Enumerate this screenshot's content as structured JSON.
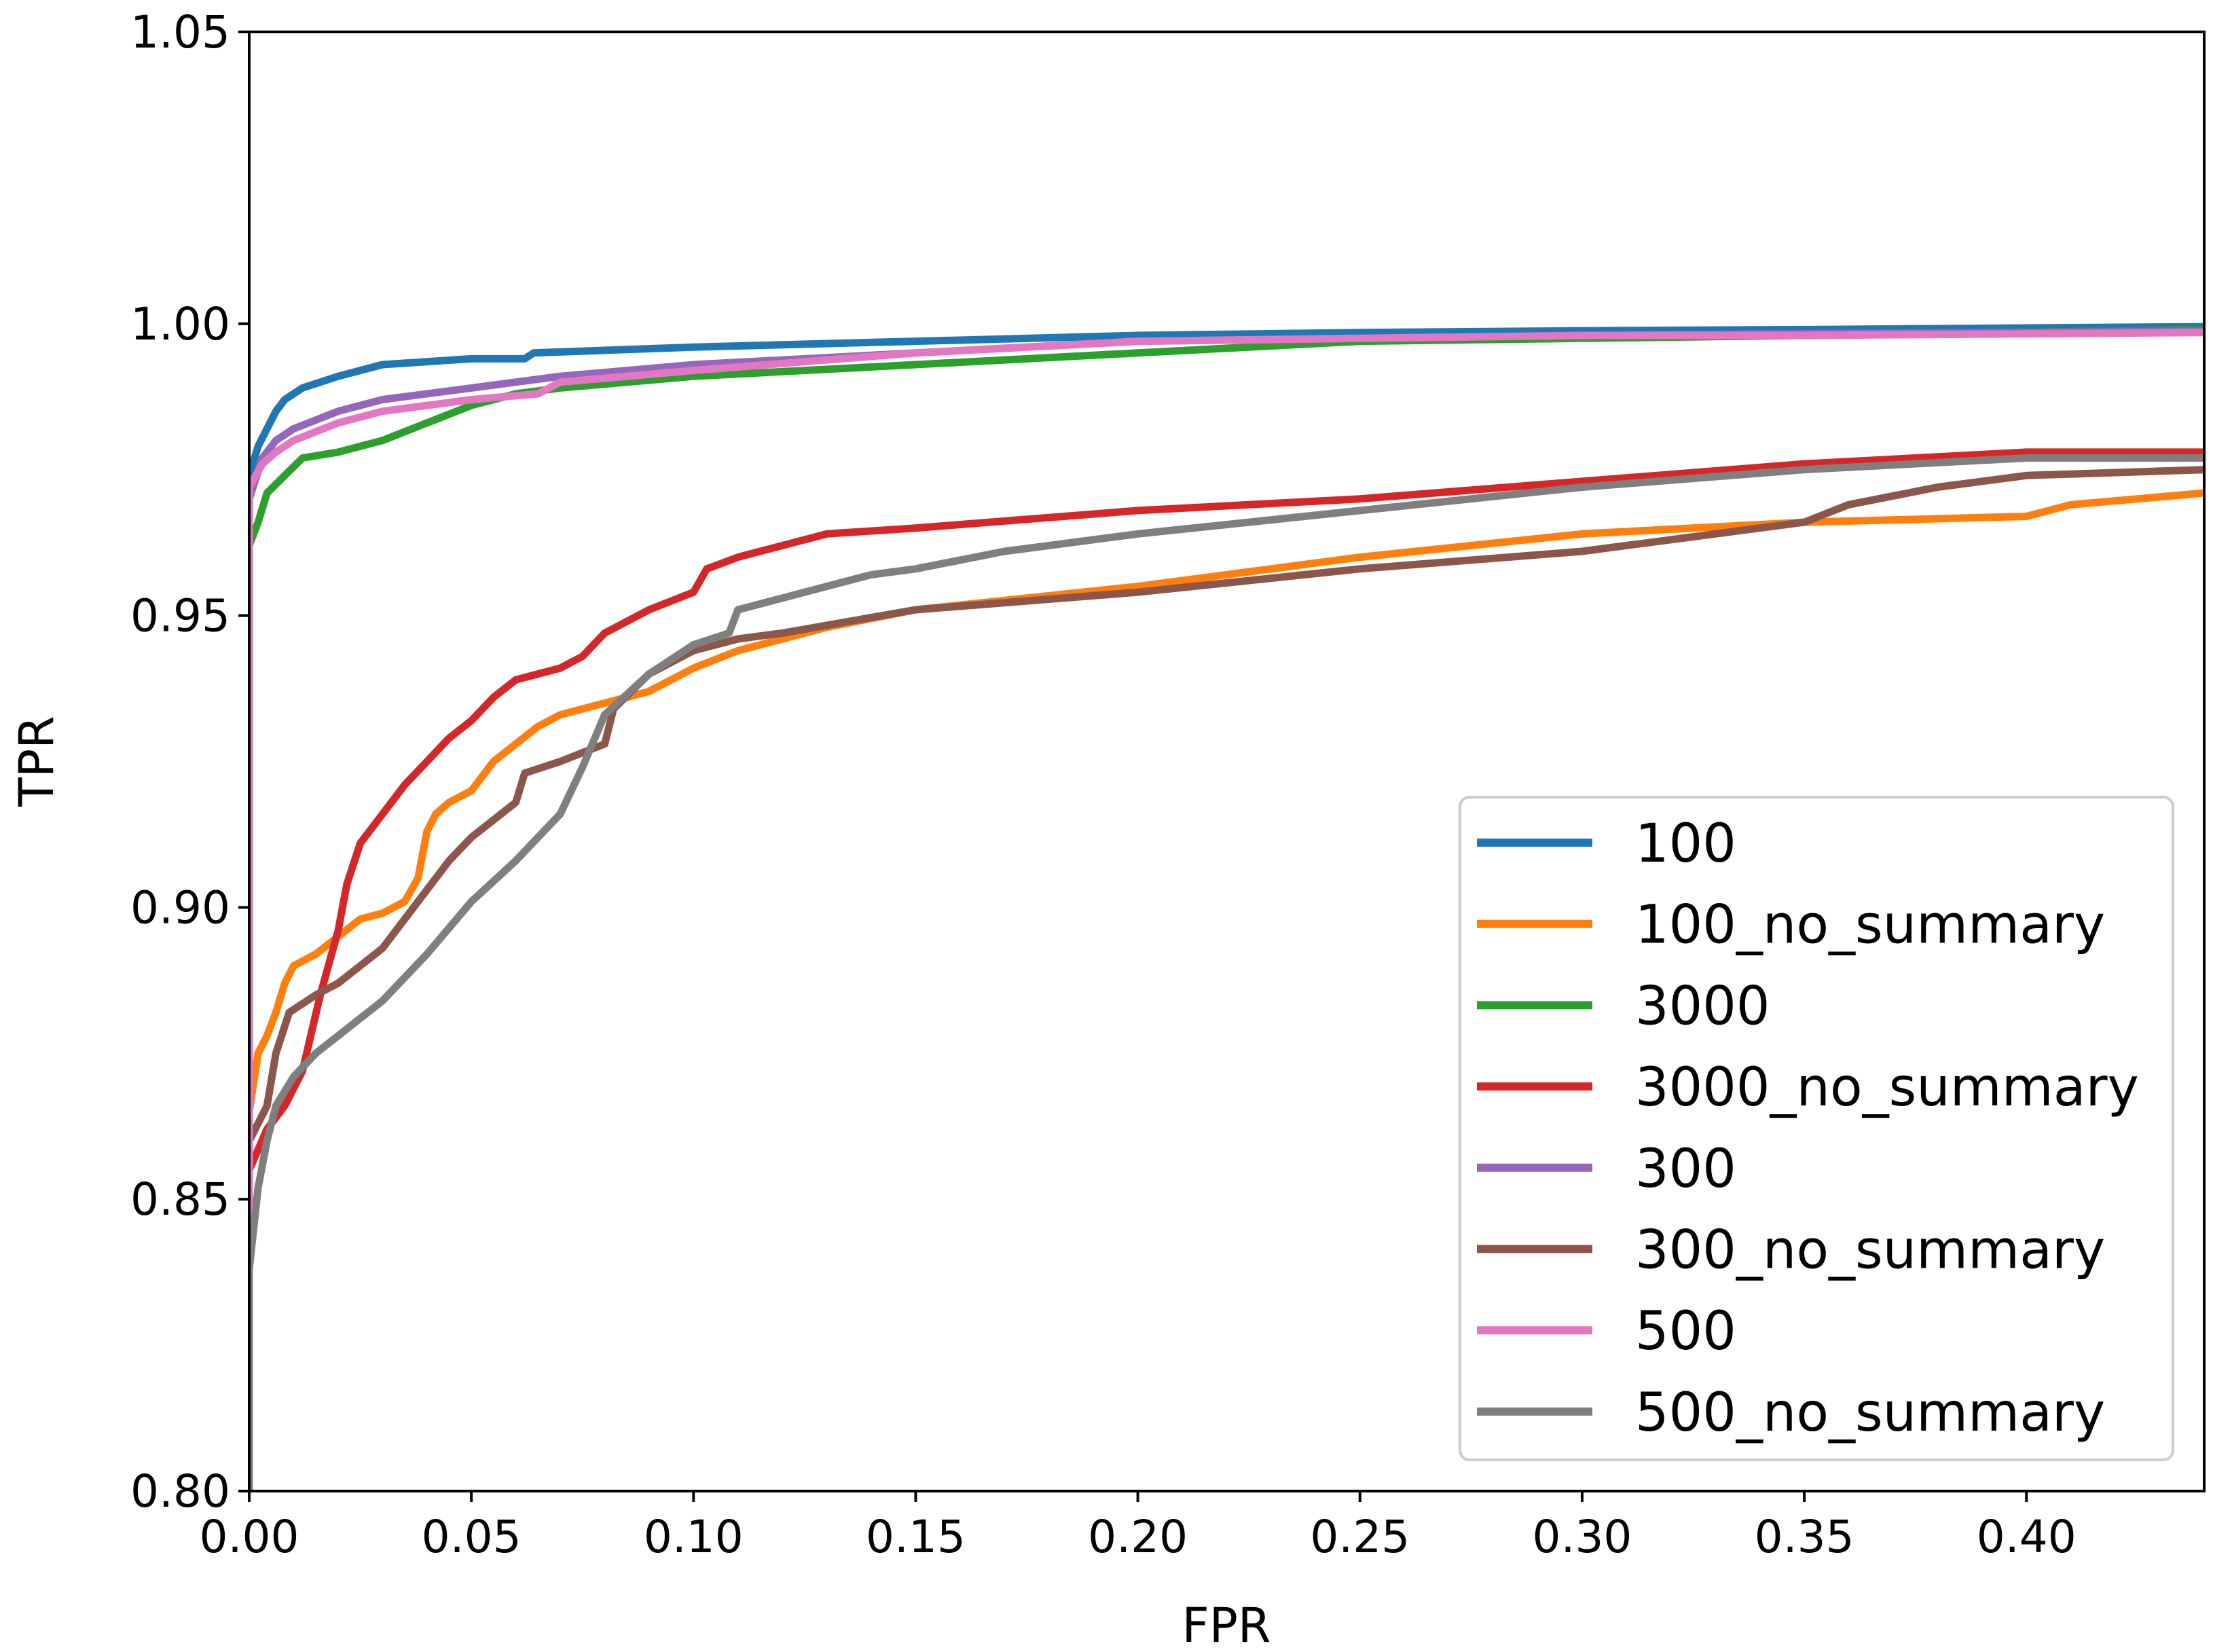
{
  "chart_data": {
    "type": "line",
    "title": "",
    "xlabel": "FPR",
    "ylabel": "TPR",
    "xlim": [
      0.0,
      0.44
    ],
    "ylim": [
      0.8,
      1.05
    ],
    "xticks": [
      0.0,
      0.05,
      0.1,
      0.15,
      0.2,
      0.25,
      0.3,
      0.35,
      0.4
    ],
    "xtick_labels": [
      "0.00",
      "0.05",
      "0.10",
      "0.15",
      "0.20",
      "0.25",
      "0.30",
      "0.35",
      "0.40"
    ],
    "yticks": [
      0.8,
      0.85,
      0.9,
      0.95,
      1.0,
      1.05
    ],
    "ytick_labels": [
      "0.80",
      "0.85",
      "0.90",
      "0.95",
      "1.00",
      "1.05"
    ],
    "grid": false,
    "legend_position": "right",
    "series": [
      {
        "name": "100",
        "color": "#1f77b4",
        "points": [
          [
            0,
            0.8
          ],
          [
            0,
            0.974
          ],
          [
            0.002,
            0.979
          ],
          [
            0.004,
            0.982
          ],
          [
            0.006,
            0.985
          ],
          [
            0.008,
            0.987
          ],
          [
            0.012,
            0.989
          ],
          [
            0.02,
            0.991
          ],
          [
            0.03,
            0.993
          ],
          [
            0.05,
            0.994
          ],
          [
            0.062,
            0.994
          ],
          [
            0.064,
            0.995
          ],
          [
            0.1,
            0.996
          ],
          [
            0.15,
            0.997
          ],
          [
            0.2,
            0.998
          ],
          [
            0.25,
            0.9985
          ],
          [
            0.3,
            0.9988
          ],
          [
            0.35,
            0.999
          ],
          [
            0.44,
            0.9995
          ]
        ]
      },
      {
        "name": "100_no_summary",
        "color": "#ff7f0e",
        "points": [
          [
            0,
            0.8
          ],
          [
            0,
            0.865
          ],
          [
            0.002,
            0.875
          ],
          [
            0.004,
            0.878
          ],
          [
            0.006,
            0.882
          ],
          [
            0.008,
            0.887
          ],
          [
            0.01,
            0.89
          ],
          [
            0.015,
            0.892
          ],
          [
            0.02,
            0.895
          ],
          [
            0.025,
            0.898
          ],
          [
            0.03,
            0.899
          ],
          [
            0.035,
            0.901
          ],
          [
            0.038,
            0.905
          ],
          [
            0.04,
            0.913
          ],
          [
            0.042,
            0.916
          ],
          [
            0.045,
            0.918
          ],
          [
            0.05,
            0.92
          ],
          [
            0.055,
            0.925
          ],
          [
            0.06,
            0.928
          ],
          [
            0.065,
            0.931
          ],
          [
            0.07,
            0.933
          ],
          [
            0.08,
            0.935
          ],
          [
            0.09,
            0.937
          ],
          [
            0.1,
            0.941
          ],
          [
            0.11,
            0.944
          ],
          [
            0.12,
            0.946
          ],
          [
            0.13,
            0.948
          ],
          [
            0.15,
            0.951
          ],
          [
            0.2,
            0.955
          ],
          [
            0.25,
            0.96
          ],
          [
            0.3,
            0.964
          ],
          [
            0.35,
            0.966
          ],
          [
            0.4,
            0.967
          ],
          [
            0.41,
            0.969
          ],
          [
            0.44,
            0.971
          ]
        ]
      },
      {
        "name": "3000",
        "color": "#2ca02c",
        "points": [
          [
            0,
            0.8
          ],
          [
            0,
            0.962
          ],
          [
            0.002,
            0.966
          ],
          [
            0.004,
            0.971
          ],
          [
            0.008,
            0.974
          ],
          [
            0.012,
            0.977
          ],
          [
            0.02,
            0.978
          ],
          [
            0.03,
            0.98
          ],
          [
            0.04,
            0.983
          ],
          [
            0.05,
            0.986
          ],
          [
            0.06,
            0.988
          ],
          [
            0.07,
            0.989
          ],
          [
            0.1,
            0.991
          ],
          [
            0.15,
            0.993
          ],
          [
            0.2,
            0.995
          ],
          [
            0.25,
            0.997
          ],
          [
            0.3,
            0.9975
          ],
          [
            0.35,
            0.998
          ],
          [
            0.44,
            0.999
          ]
        ]
      },
      {
        "name": "3000_no_summary",
        "color": "#d62728",
        "points": [
          [
            0,
            0.8
          ],
          [
            0,
            0.855
          ],
          [
            0.004,
            0.862
          ],
          [
            0.008,
            0.866
          ],
          [
            0.012,
            0.872
          ],
          [
            0.016,
            0.885
          ],
          [
            0.02,
            0.896
          ],
          [
            0.022,
            0.904
          ],
          [
            0.025,
            0.911
          ],
          [
            0.03,
            0.916
          ],
          [
            0.035,
            0.921
          ],
          [
            0.04,
            0.925
          ],
          [
            0.045,
            0.929
          ],
          [
            0.05,
            0.932
          ],
          [
            0.055,
            0.936
          ],
          [
            0.06,
            0.939
          ],
          [
            0.07,
            0.941
          ],
          [
            0.075,
            0.943
          ],
          [
            0.08,
            0.947
          ],
          [
            0.09,
            0.951
          ],
          [
            0.1,
            0.954
          ],
          [
            0.103,
            0.958
          ],
          [
            0.11,
            0.96
          ],
          [
            0.12,
            0.962
          ],
          [
            0.13,
            0.964
          ],
          [
            0.15,
            0.965
          ],
          [
            0.2,
            0.968
          ],
          [
            0.25,
            0.97
          ],
          [
            0.3,
            0.973
          ],
          [
            0.35,
            0.976
          ],
          [
            0.4,
            0.978
          ],
          [
            0.44,
            0.978
          ]
        ]
      },
      {
        "name": "300",
        "color": "#9467bd",
        "points": [
          [
            0,
            0.8
          ],
          [
            0,
            0.97
          ],
          [
            0.003,
            0.977
          ],
          [
            0.006,
            0.98
          ],
          [
            0.01,
            0.982
          ],
          [
            0.02,
            0.985
          ],
          [
            0.03,
            0.987
          ],
          [
            0.05,
            0.989
          ],
          [
            0.07,
            0.991
          ],
          [
            0.1,
            0.993
          ],
          [
            0.15,
            0.995
          ],
          [
            0.2,
            0.997
          ],
          [
            0.25,
            0.9975
          ],
          [
            0.3,
            0.998
          ],
          [
            0.35,
            0.9983
          ],
          [
            0.44,
            0.9987
          ]
        ]
      },
      {
        "name": "300_no_summary",
        "color": "#8c564b",
        "points": [
          [
            0,
            0.8
          ],
          [
            0,
            0.86
          ],
          [
            0.004,
            0.866
          ],
          [
            0.006,
            0.875
          ],
          [
            0.009,
            0.882
          ],
          [
            0.015,
            0.885
          ],
          [
            0.02,
            0.887
          ],
          [
            0.03,
            0.893
          ],
          [
            0.035,
            0.898
          ],
          [
            0.04,
            0.903
          ],
          [
            0.045,
            0.908
          ],
          [
            0.05,
            0.912
          ],
          [
            0.055,
            0.915
          ],
          [
            0.06,
            0.918
          ],
          [
            0.062,
            0.923
          ],
          [
            0.07,
            0.925
          ],
          [
            0.08,
            0.928
          ],
          [
            0.082,
            0.934
          ],
          [
            0.09,
            0.94
          ],
          [
            0.1,
            0.944
          ],
          [
            0.11,
            0.946
          ],
          [
            0.12,
            0.947
          ],
          [
            0.15,
            0.951
          ],
          [
            0.2,
            0.954
          ],
          [
            0.25,
            0.958
          ],
          [
            0.3,
            0.961
          ],
          [
            0.35,
            0.966
          ],
          [
            0.36,
            0.969
          ],
          [
            0.38,
            0.972
          ],
          [
            0.4,
            0.974
          ],
          [
            0.44,
            0.975
          ]
        ]
      },
      {
        "name": "500",
        "color": "#e377c2",
        "points": [
          [
            0,
            0.8
          ],
          [
            0,
            0.972
          ],
          [
            0.003,
            0.976
          ],
          [
            0.006,
            0.978
          ],
          [
            0.01,
            0.98
          ],
          [
            0.02,
            0.983
          ],
          [
            0.03,
            0.985
          ],
          [
            0.05,
            0.987
          ],
          [
            0.065,
            0.988
          ],
          [
            0.07,
            0.99
          ],
          [
            0.1,
            0.992
          ],
          [
            0.15,
            0.995
          ],
          [
            0.2,
            0.997
          ],
          [
            0.25,
            0.9975
          ],
          [
            0.3,
            0.998
          ],
          [
            0.35,
            0.998
          ],
          [
            0.44,
            0.9985
          ]
        ]
      },
      {
        "name": "500_no_summary",
        "color": "#7f7f7f",
        "points": [
          [
            0,
            0.8
          ],
          [
            0,
            0.838
          ],
          [
            0.002,
            0.852
          ],
          [
            0.004,
            0.86
          ],
          [
            0.006,
            0.866
          ],
          [
            0.01,
            0.871
          ],
          [
            0.015,
            0.875
          ],
          [
            0.02,
            0.878
          ],
          [
            0.03,
            0.884
          ],
          [
            0.04,
            0.892
          ],
          [
            0.05,
            0.901
          ],
          [
            0.06,
            0.908
          ],
          [
            0.065,
            0.912
          ],
          [
            0.07,
            0.916
          ],
          [
            0.075,
            0.924
          ],
          [
            0.08,
            0.933
          ],
          [
            0.09,
            0.94
          ],
          [
            0.1,
            0.945
          ],
          [
            0.108,
            0.947
          ],
          [
            0.11,
            0.951
          ],
          [
            0.12,
            0.953
          ],
          [
            0.13,
            0.955
          ],
          [
            0.14,
            0.957
          ],
          [
            0.15,
            0.958
          ],
          [
            0.17,
            0.961
          ],
          [
            0.2,
            0.964
          ],
          [
            0.25,
            0.968
          ],
          [
            0.3,
            0.972
          ],
          [
            0.35,
            0.975
          ],
          [
            0.4,
            0.977
          ],
          [
            0.44,
            0.977
          ]
        ]
      }
    ]
  }
}
